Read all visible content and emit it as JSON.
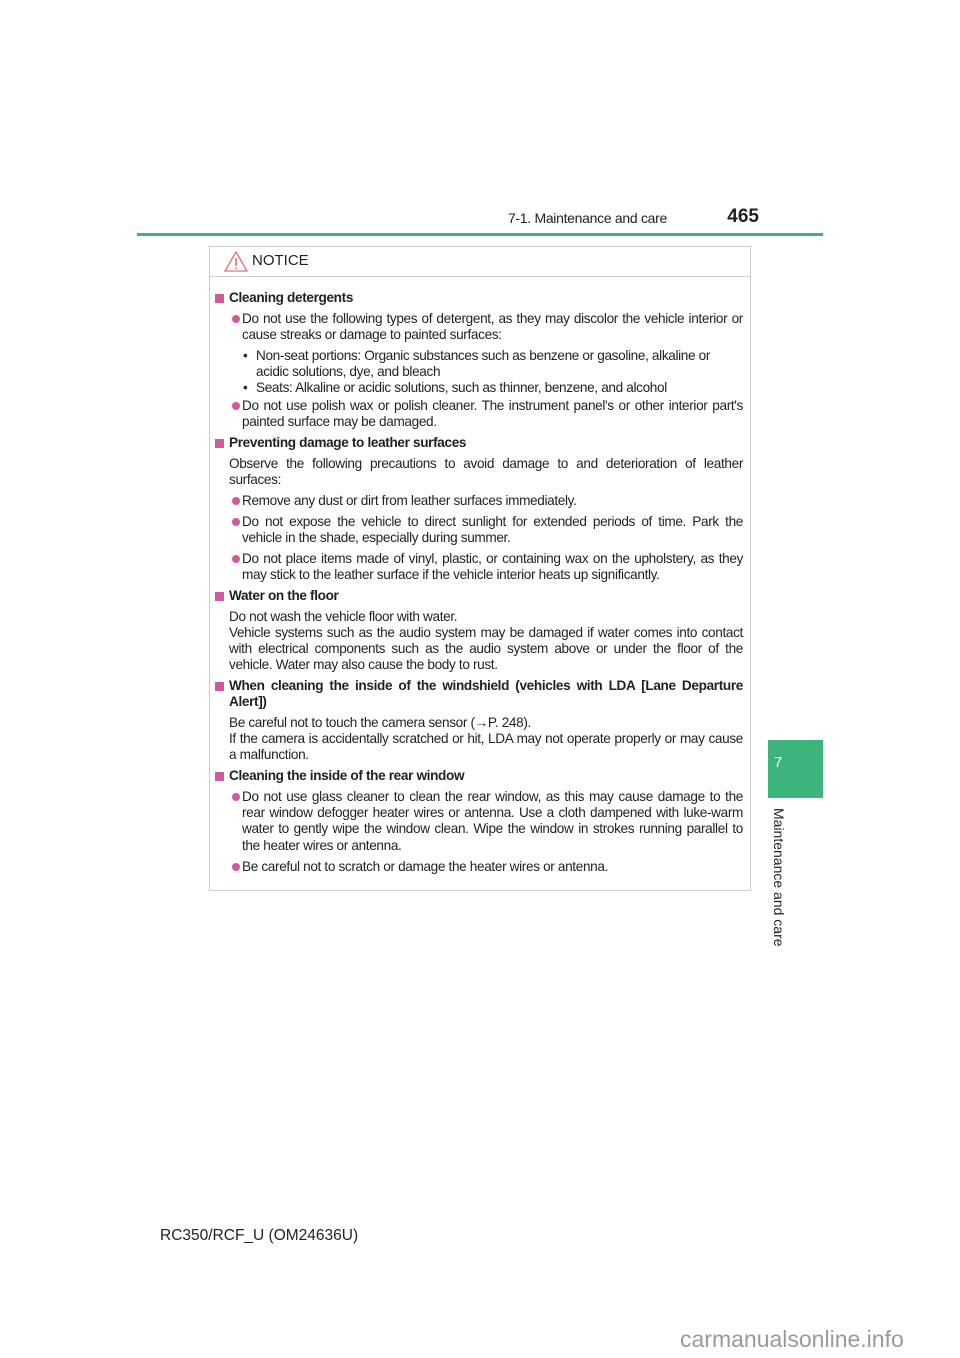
{
  "header": {
    "section": "7-1. Maintenance and care",
    "page_number": "465"
  },
  "notice": {
    "title": "NOTICE",
    "icon": "warning-triangle-icon"
  },
  "content": {
    "h1": "Cleaning detergents",
    "b1": "Do not use the following types of detergent, as they may discolor the vehicle interior or cause streaks or damage to painted surfaces:",
    "s1": "Non-seat portions: Organic substances such as benzene or gasoline, alkaline or acidic solutions, dye, and bleach",
    "s2": "Seats: Alkaline or acidic solutions, such as thinner, benzene, and alcohol",
    "b2": "Do not use polish wax or polish cleaner. The instrument panel's or other interior part's painted surface may be damaged.",
    "h2": "Preventing damage to leather surfaces",
    "p2": "Observe the following precautions to avoid damage to and deterioration of leather surfaces:",
    "b3": "Remove any dust or dirt from leather surfaces immediately.",
    "b4": "Do not expose the vehicle to direct sunlight for extended periods of time. Park the vehicle in the shade, especially during summer.",
    "b5": "Do not place items made of vinyl, plastic, or containing wax on the upholstery, as they may stick to the leather surface if the vehicle interior heats up significantly.",
    "h3": "Water on the floor",
    "p3a": "Do not wash the vehicle floor with water.",
    "p3b": "Vehicle systems such as the audio system may be damaged if water comes into contact with electrical components such as the audio system above or under the floor of the vehicle. Water may also cause the body to rust.",
    "h4": "When cleaning the inside of the windshield (vehicles with LDA [Lane Departure Alert])",
    "p4a": "Be careful not to touch the camera sensor (→P. 248).",
    "p4b": "If the camera is accidentally scratched or hit, LDA may not operate properly or may cause a malfunction.",
    "h5": "Cleaning the inside of the rear window",
    "b6": "Do not use glass cleaner to clean the rear window, as this may cause damage to the rear window defogger heater wires or antenna. Use a cloth dampened with luke-warm water to gently wipe the window clean. Wipe the window in strokes running parallel to the heater wires or antenna.",
    "b7": "Be careful not to scratch or damage the heater wires or antenna."
  },
  "side_tab": {
    "number": "7",
    "label": "Maintenance and care"
  },
  "footer": {
    "model": "RC350/RCF_U (OM24636U)"
  },
  "watermark": "carmanualsonline.info",
  "colors": {
    "accent_green": "#3cb47c",
    "bullet_pink": "#d1589a",
    "warning_red": "#e0737a"
  }
}
